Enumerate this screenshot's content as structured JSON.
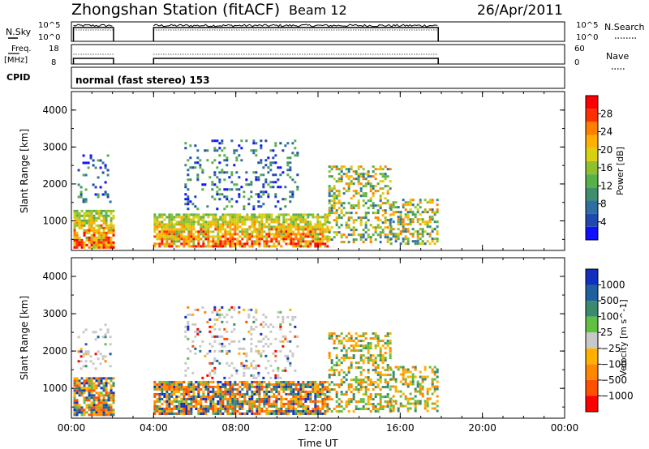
{
  "header": {
    "station": "Zhongshan Station (fitACF)",
    "beam": "Beam 12",
    "date": "26/Apr/2011"
  },
  "strip_labels": {
    "nsky": "N.Sky",
    "freq_line1": "Freq.",
    "freq_line2": "[MHz]",
    "cpid": "CPID",
    "nsearch": "N.Search",
    "nave": "Nave",
    "cpid_value": "normal (fast stereo) 153"
  },
  "strip_ticks": {
    "nsky_top": "10^5",
    "nsky_bottom": "10^0",
    "freq_top": "18",
    "freq_bottom": "8",
    "nave_top": "60",
    "nave_bottom": "0"
  },
  "colors": {
    "power": [
      "#1010ff",
      "#2048b0",
      "#2f6fa0",
      "#3f8f6f",
      "#58b048",
      "#90c030",
      "#d8d010",
      "#ffb000",
      "#ff8000",
      "#ff3000",
      "#ff0000"
    ],
    "velocity": [
      "#1030c0",
      "#2060a0",
      "#3a8a70",
      "#60c040",
      "#c8c8c8",
      "#ffb000",
      "#ff8800",
      "#ff5000",
      "#ff0000"
    ]
  },
  "chart_data": [
    {
      "type": "heatmap",
      "name": "power",
      "ylabel": "Slant Range [km]",
      "ylim": [
        200,
        4500
      ],
      "xlim": [
        0,
        24
      ],
      "yticks": [
        1000,
        2000,
        3000,
        4000
      ],
      "xticks": [
        "00:00",
        "04:00",
        "08:00",
        "12:00",
        "16:00",
        "20:00",
        "00:00"
      ],
      "colorbar": {
        "label": "Power [dB]",
        "range": [
          0,
          32
        ],
        "ticks": [
          4,
          8,
          12,
          16,
          20,
          24,
          28
        ]
      },
      "data_blocks": [
        {
          "t": [
            0.1,
            2.0
          ],
          "r": [
            300,
            1300
          ],
          "level": "high"
        },
        {
          "t": [
            0.3,
            1.9
          ],
          "r": [
            1500,
            2800
          ],
          "level": "low"
        },
        {
          "t": [
            4.0,
            12.5
          ],
          "r": [
            300,
            1200
          ],
          "level": "high"
        },
        {
          "t": [
            5.5,
            11.0
          ],
          "r": [
            1300,
            3200
          ],
          "level": "low"
        },
        {
          "t": [
            12.5,
            15.5
          ],
          "r": [
            400,
            2500
          ],
          "level": "mid"
        },
        {
          "t": [
            15.5,
            17.8
          ],
          "r": [
            400,
            1600
          ],
          "level": "mid"
        }
      ]
    },
    {
      "type": "heatmap",
      "name": "velocity",
      "xlabel": "Time UT",
      "ylabel": "Slant Range [km]",
      "ylim": [
        200,
        4500
      ],
      "xlim": [
        0,
        24
      ],
      "yticks": [
        1000,
        2000,
        3000,
        4000
      ],
      "xticks": [
        "00:00",
        "04:00",
        "08:00",
        "12:00",
        "16:00",
        "20:00",
        "00:00"
      ],
      "colorbar": {
        "label": "Velocity [m s^-1]",
        "ticks": [
          "1000",
          "500",
          "100",
          "25",
          "−25",
          "−100",
          "−500",
          "−1000"
        ]
      }
    }
  ]
}
